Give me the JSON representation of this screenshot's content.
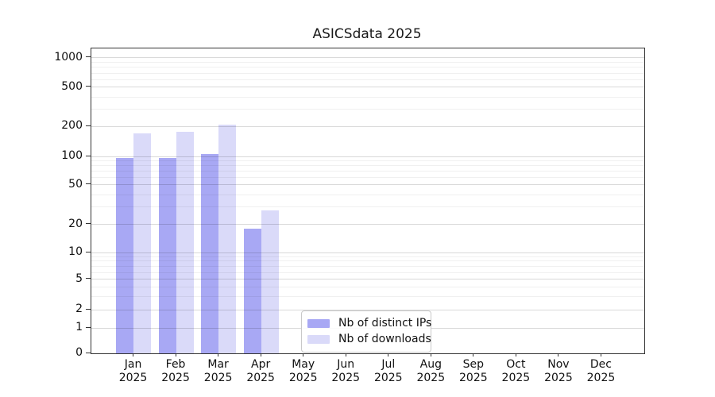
{
  "chart_data": {
    "type": "bar",
    "title": "ASICSdata 2025",
    "x_categories": [
      "Jan",
      "Feb",
      "Mar",
      "Apr",
      "May",
      "Jun",
      "Jul",
      "Aug",
      "Sep",
      "Oct",
      "Nov",
      "Dec"
    ],
    "x_year": "2025",
    "series": [
      {
        "name": "Nb of distinct IPs",
        "color": "#a8a8f4",
        "values": [
          96,
          96,
          105,
          18,
          0,
          0,
          0,
          0,
          0,
          0,
          0,
          0
        ]
      },
      {
        "name": "Nb of downloads",
        "color": "#dadaf9",
        "values": [
          172,
          177,
          208,
          28,
          0,
          0,
          0,
          0,
          0,
          0,
          0,
          0
        ]
      }
    ],
    "y_axis": {
      "scale": "symlog",
      "ticks": [
        0,
        1,
        2,
        5,
        10,
        20,
        50,
        100,
        200,
        500,
        1000
      ],
      "minor_ticks": [
        3,
        4,
        6,
        7,
        8,
        9,
        30,
        40,
        60,
        70,
        80,
        90,
        300,
        400,
        600,
        700,
        800,
        900
      ]
    },
    "grid": "horizontal major and minor",
    "legend_position": "lower center"
  },
  "colors": {
    "bar_ips": "#a8a8f4",
    "bar_downloads": "#dadaf9",
    "axis": "#333333",
    "grid_major": "rgba(0,0,0,0.15)",
    "grid_minor": "rgba(0,0,0,0.06)"
  }
}
